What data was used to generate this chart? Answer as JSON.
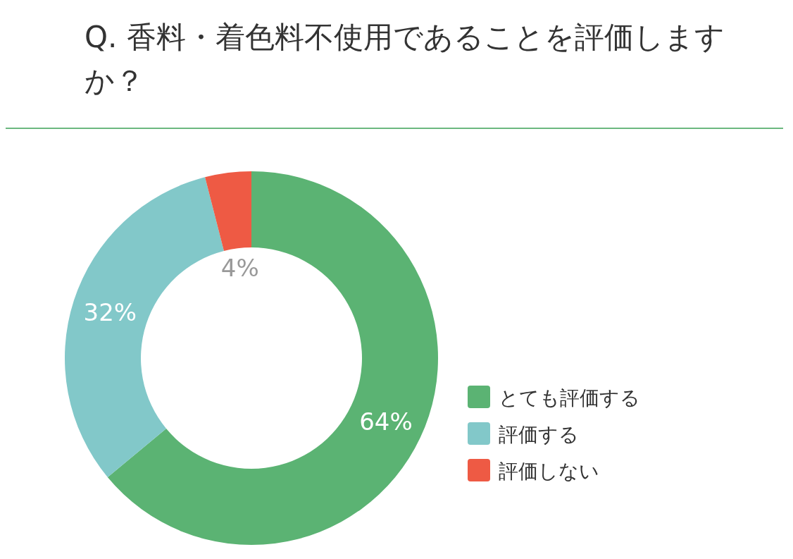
{
  "chart_data": {
    "type": "donut",
    "title": "Q. 香料・着色料不使用であることを評価しますか？",
    "categories": [
      "とても評価する",
      "評価する",
      "評価しない"
    ],
    "values": [
      64,
      32,
      4
    ],
    "colors": [
      "#5bb373",
      "#82c8c9",
      "#ee5a44"
    ],
    "value_labels": [
      "64%",
      "32%",
      "4%"
    ],
    "legend": "right"
  }
}
